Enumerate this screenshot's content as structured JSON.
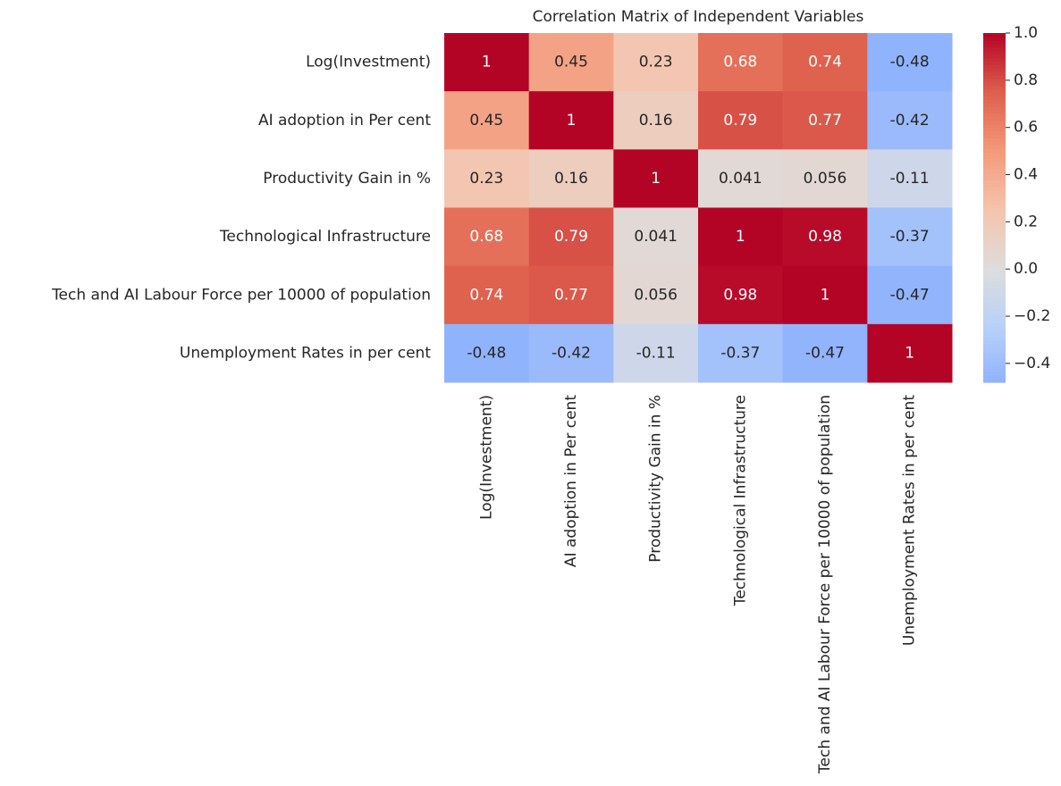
{
  "chart_data": {
    "type": "heatmap",
    "title": "Correlation Matrix of Independent Variables",
    "x_categories": [
      "Log(Investment)",
      "AI adoption in Per cent",
      "Productivity Gain in %",
      "Technological Infrastructure",
      "Tech and AI Labour Force per 10000 of population",
      "Unemployment Rates in per cent"
    ],
    "y_categories": [
      "Log(Investment)",
      "AI adoption in Per cent",
      "Productivity Gain in %",
      "Technological Infrastructure",
      "Tech and AI Labour Force per 10000 of population",
      "Unemployment Rates in per cent"
    ],
    "values": [
      [
        1,
        0.45,
        0.23,
        0.68,
        0.74,
        -0.48
      ],
      [
        0.45,
        1,
        0.16,
        0.79,
        0.77,
        -0.42
      ],
      [
        0.23,
        0.16,
        1,
        0.041,
        0.056,
        -0.11
      ],
      [
        0.68,
        0.79,
        0.041,
        1,
        0.98,
        -0.37
      ],
      [
        0.74,
        0.77,
        0.056,
        0.98,
        1,
        -0.47
      ],
      [
        -0.48,
        -0.42,
        -0.11,
        -0.37,
        -0.47,
        1
      ]
    ],
    "colormap": "coolwarm",
    "center": 0,
    "colorlim": [
      -0.48,
      1
    ],
    "colorticks": [
      {
        "value": 1,
        "label": "1.0"
      },
      0.8,
      0.6,
      0.4,
      0.2,
      {
        "value": 0,
        "label": "0.0"
      },
      {
        "value": -0.2,
        "label": "−0.2"
      },
      {
        "value": -0.4,
        "label": "−0.4"
      }
    ]
  }
}
